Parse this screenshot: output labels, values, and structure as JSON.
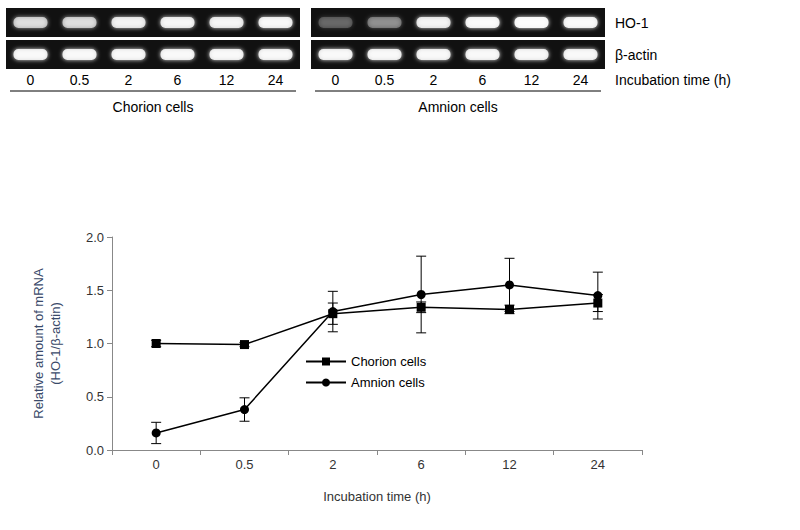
{
  "chart_data": {
    "type": "line",
    "xlabel": "Incubation time (h)",
    "ylabel": "Relative amount of mRNA\n(HO-1/β-actin)",
    "categories": [
      "0",
      "0.5",
      "2",
      "6",
      "12",
      "24"
    ],
    "series": [
      {
        "name": "Chorion cells",
        "color": "#000000",
        "marker": "square",
        "values": [
          1.0,
          0.99,
          1.28,
          1.34,
          1.32,
          1.38
        ],
        "errors": [
          0.03,
          0.02,
          0.1,
          0.05,
          0.04,
          0.08
        ]
      },
      {
        "name": "Amnion cells",
        "color": "#000000",
        "marker": "circle",
        "values": [
          0.16,
          0.38,
          1.3,
          1.46,
          1.55,
          1.45
        ],
        "errors": [
          0.1,
          0.11,
          0.19,
          0.36,
          0.25,
          0.22
        ]
      }
    ],
    "ylim": [
      0,
      2
    ],
    "yticks": [
      {
        "value": 0,
        "label": "0.0"
      },
      {
        "value": 0.5,
        "label": "0.5"
      },
      {
        "value": 1,
        "label": "1.0"
      },
      {
        "value": 1.5,
        "label": "1.5"
      },
      {
        "value": 2,
        "label": "2.0"
      }
    ],
    "grid": false,
    "legend": "bottom"
  },
  "gel": {
    "row_labels": [
      "HO-1",
      "β-actin"
    ],
    "lanes": [
      0,
      0.5,
      2,
      6,
      12,
      24
    ],
    "lane_title": "Incubation time (h)",
    "groups": [
      "Chorion cells",
      "Amnion cells"
    ]
  }
}
